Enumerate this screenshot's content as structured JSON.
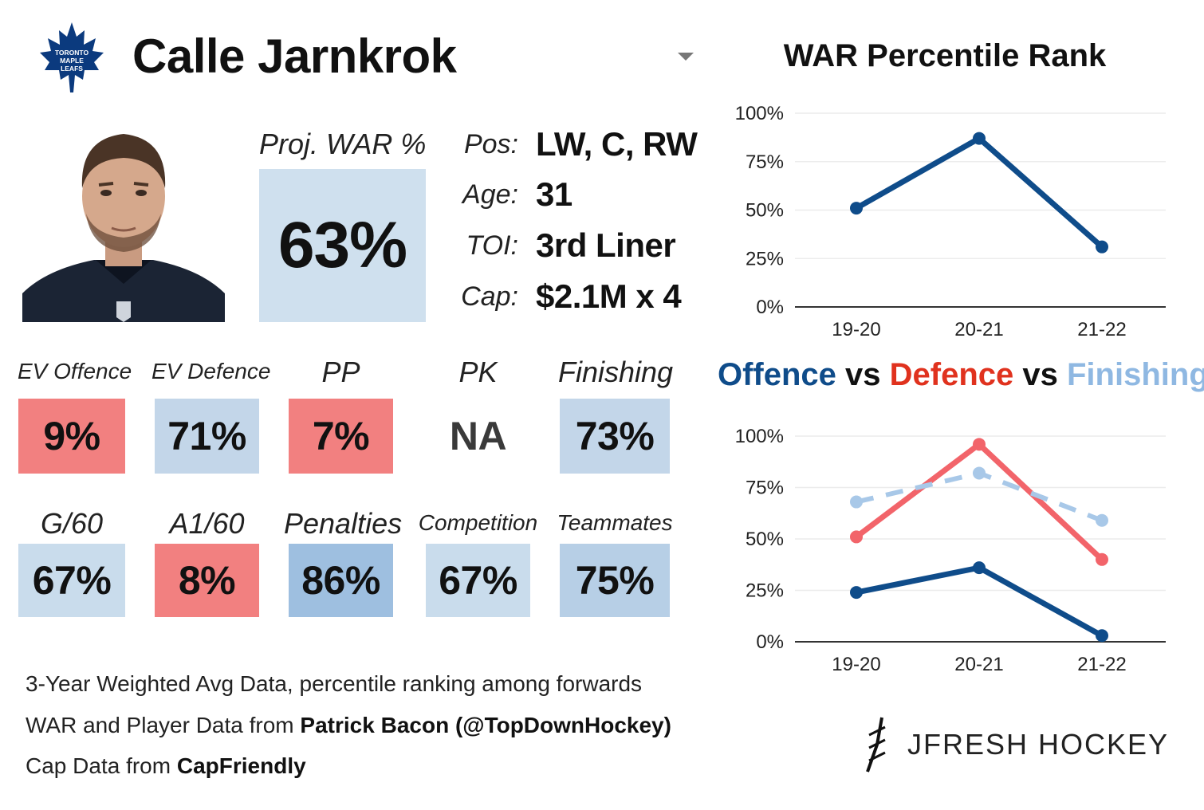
{
  "header": {
    "team_logo_icon": "maple-leaf-icon",
    "logo_text": [
      "TORONTO",
      "MAPLE",
      "LEAFS"
    ],
    "player_name": "Calle Jarnkrok",
    "selector_icon": "caret-down-icon"
  },
  "projection": {
    "label": "Proj. WAR %",
    "value": "63%"
  },
  "info": [
    {
      "label": "Pos:",
      "value": "LW, C, RW"
    },
    {
      "label": "Age:",
      "value": "31"
    },
    {
      "label": "TOI:",
      "value": "3rd Liner"
    },
    {
      "label": "Cap:",
      "value": "$2.1M x 4"
    }
  ],
  "tiles_row1": [
    {
      "label": "EV Offence",
      "value": "9%",
      "color": "#f28080"
    },
    {
      "label": "EV Defence",
      "value": "71%",
      "color": "#c3d6e9"
    },
    {
      "label": "PP",
      "value": "7%",
      "color": "#f28080"
    },
    {
      "label": "PK",
      "value": "NA",
      "color": "#ffffff"
    },
    {
      "label": "Finishing",
      "value": "73%",
      "color": "#c3d6e9"
    }
  ],
  "tiles_row2": [
    {
      "label": "G/60",
      "value": "67%",
      "color": "#c9dcec"
    },
    {
      "label": "A1/60",
      "value": "8%",
      "color": "#f28080"
    },
    {
      "label": "Penalties",
      "value": "86%",
      "color": "#9ebfe0"
    },
    {
      "label": "Competition",
      "value": "67%",
      "color": "#c9dcec"
    },
    {
      "label": "Teammates",
      "value": "75%",
      "color": "#b7cfe6"
    }
  ],
  "footer": {
    "line1": "3-Year Weighted Avg Data, percentile ranking among forwards",
    "line2_prefix": "WAR and Player Data from ",
    "line2_bold": "Patrick Bacon (@TopDownHockey)",
    "line3_prefix": "Cap Data from ",
    "line3_bold": "CapFriendly"
  },
  "brand": {
    "icon": "jfresh-logo-icon",
    "text": "JFRESH HOCKEY"
  },
  "chart_titles": {
    "top": "WAR Percentile Rank",
    "bottom_parts": [
      "Offence",
      " vs ",
      "Defence",
      " vs ",
      "Finishing"
    ]
  },
  "chart_data": [
    {
      "type": "line",
      "title": "WAR Percentile Rank",
      "categories": [
        "19-20",
        "20-21",
        "21-22"
      ],
      "series": [
        {
          "values": [
            51,
            87,
            31
          ],
          "color": "#0f4c8a"
        }
      ],
      "yticks": [
        "0%",
        "25%",
        "50%",
        "75%",
        "100%"
      ],
      "ylim": [
        0,
        100
      ],
      "grid": true
    },
    {
      "type": "line",
      "title": "Offence vs Defence vs Finishing",
      "categories": [
        "19-20",
        "20-21",
        "21-22"
      ],
      "series": [
        {
          "name": "Offence",
          "values": [
            24,
            36,
            3
          ],
          "color": "#0f4c8a",
          "dash": false
        },
        {
          "name": "Defence",
          "values": [
            51,
            96,
            40
          ],
          "color": "#f2646a",
          "dash": false
        },
        {
          "name": "Finishing",
          "values": [
            68,
            82,
            59
          ],
          "color": "#a8c8e8",
          "dash": true
        }
      ],
      "yticks": [
        "0%",
        "25%",
        "50%",
        "75%",
        "100%"
      ],
      "ylim": [
        0,
        100
      ],
      "grid": true
    }
  ]
}
